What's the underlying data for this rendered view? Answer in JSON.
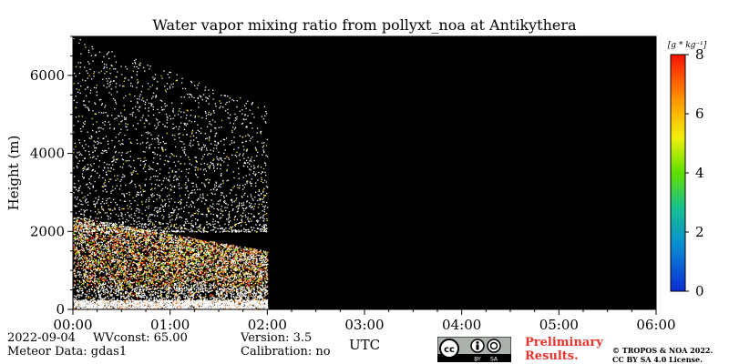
{
  "chart_data": {
    "type": "heatmap",
    "title": "Water vapor mixing ratio from pollyxt_noa at Antikythera",
    "xlabel": "UTC",
    "ylabel": "Height (m)",
    "x_ticks": [
      "00:00",
      "01:00",
      "02:00",
      "03:00",
      "04:00",
      "05:00",
      "06:00"
    ],
    "y_ticks": [
      0,
      2000,
      4000,
      6000
    ],
    "xlim_hours": [
      0,
      6
    ],
    "ylim": [
      0,
      7000
    ],
    "data_time_range_hours": [
      0,
      2.0
    ],
    "background_color": "#000000",
    "description_of_field": {
      "dense_moist_layer_m": [
        0,
        2400
      ],
      "typical_values_low_layer": [
        2,
        6
      ],
      "sparse_noise_above_m": [
        2400,
        7000
      ]
    },
    "colorbar": {
      "unit_label": "[g * kg⁻¹]",
      "range": [
        0,
        8
      ],
      "ticks": [
        0,
        2,
        4,
        6,
        8
      ],
      "colormap": "jet-like (blue→cyan→green→yellow→orange→red)"
    }
  },
  "footer": {
    "date": "2022-09-04",
    "wvconst": "WVconst:  65.00",
    "meteor": "Meteor Data: gdas1",
    "version": "Version: 3.5",
    "calibration": "Calibration: no",
    "preliminary_line1": "Preliminary",
    "preliminary_line2": "Results.",
    "copyright_line1": "© TROPOS & NOA 2022.",
    "copyright_line2": "CC BY SA 4.0 License.",
    "cc_label": "cc",
    "by_label": "BY",
    "sa_label": "SA"
  }
}
